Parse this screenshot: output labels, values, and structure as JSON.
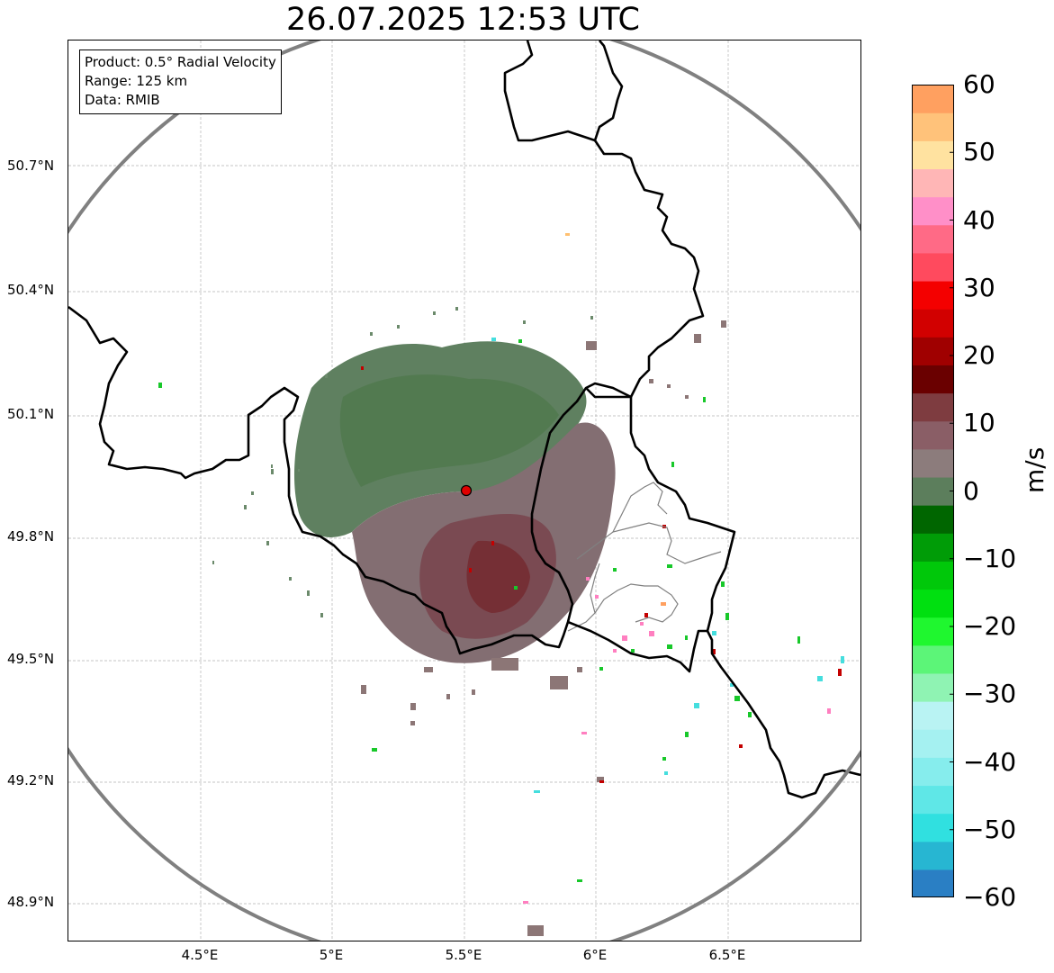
{
  "title": "26.07.2025 12:53 UTC",
  "info": {
    "product": "Product: 0.5° Radial Velocity",
    "range": "Range: 125 km",
    "data": "Data: RMIB"
  },
  "axes": {
    "lat_labels": [
      "50.7°N",
      "50.4°N",
      "50.1°N",
      "49.8°N",
      "49.5°N",
      "49.2°N",
      "48.9°N"
    ],
    "lon_labels": [
      "4.5°E",
      "5°E",
      "5.5°E",
      "6°E",
      "6.5°E"
    ]
  },
  "colorbar": {
    "label": "m/s",
    "ticks": [
      "60",
      "50",
      "40",
      "30",
      "20",
      "10",
      "0",
      "−10",
      "−20",
      "−30",
      "−40",
      "−50",
      "−60"
    ],
    "colors": [
      "#2a7fc4",
      "#27b6d2",
      "#30e0e0",
      "#5fe7e7",
      "#86eded",
      "#a5f1f1",
      "#b9f3f3",
      "#8ff3b3",
      "#5cf578",
      "#1ff72f",
      "#00e010",
      "#00c80a",
      "#009c07",
      "#006600",
      "#5c7e5c",
      "#8c7c7c",
      "#8a5e66",
      "#7e3c40",
      "#6a0000",
      "#a00000",
      "#d20000",
      "#f40000",
      "#ff4a5e",
      "#ff6a86",
      "#ff8fc8",
      "#ffb6b6",
      "#ffe2a0",
      "#ffc27a",
      "#ffa060"
    ]
  },
  "radar_site": "radar-site-marker",
  "colors": {
    "range_ring": "#808080",
    "borders": "#000000",
    "grid": "#b4b4b4",
    "site": "#e00000"
  }
}
